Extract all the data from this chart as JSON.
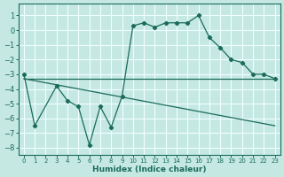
{
  "xlabel": "Humidex (Indice chaleur)",
  "xlim": [
    -0.5,
    23.5
  ],
  "ylim": [
    -8.5,
    1.8
  ],
  "yticks": [
    1,
    0,
    -1,
    -2,
    -3,
    -4,
    -5,
    -6,
    -7,
    -8
  ],
  "xticks": [
    0,
    1,
    2,
    3,
    4,
    5,
    6,
    7,
    8,
    9,
    10,
    11,
    12,
    13,
    14,
    15,
    16,
    17,
    18,
    19,
    20,
    21,
    22,
    23
  ],
  "bg": "#c5e8e3",
  "grid_color": "#f0ffff",
  "lc": "#1a6b5a",
  "line1_x": [
    0,
    1,
    3,
    4,
    5,
    6,
    7,
    8,
    9,
    10,
    11,
    12,
    13,
    14,
    15,
    16,
    17,
    18,
    19,
    20,
    21,
    22,
    23
  ],
  "line1_y": [
    -3.0,
    -6.5,
    -3.8,
    -4.8,
    -5.2,
    -7.8,
    -5.2,
    -6.6,
    -4.5,
    0.3,
    0.5,
    0.2,
    0.5,
    0.5,
    0.5,
    1.0,
    -0.5,
    -1.2,
    -2.0,
    -2.2,
    -3.0,
    -3.0,
    -3.3
  ],
  "line2_x": [
    0,
    23
  ],
  "line2_y": [
    -3.3,
    -6.5
  ],
  "line3_x": [
    0,
    23
  ],
  "line3_y": [
    -3.3,
    -3.3
  ]
}
